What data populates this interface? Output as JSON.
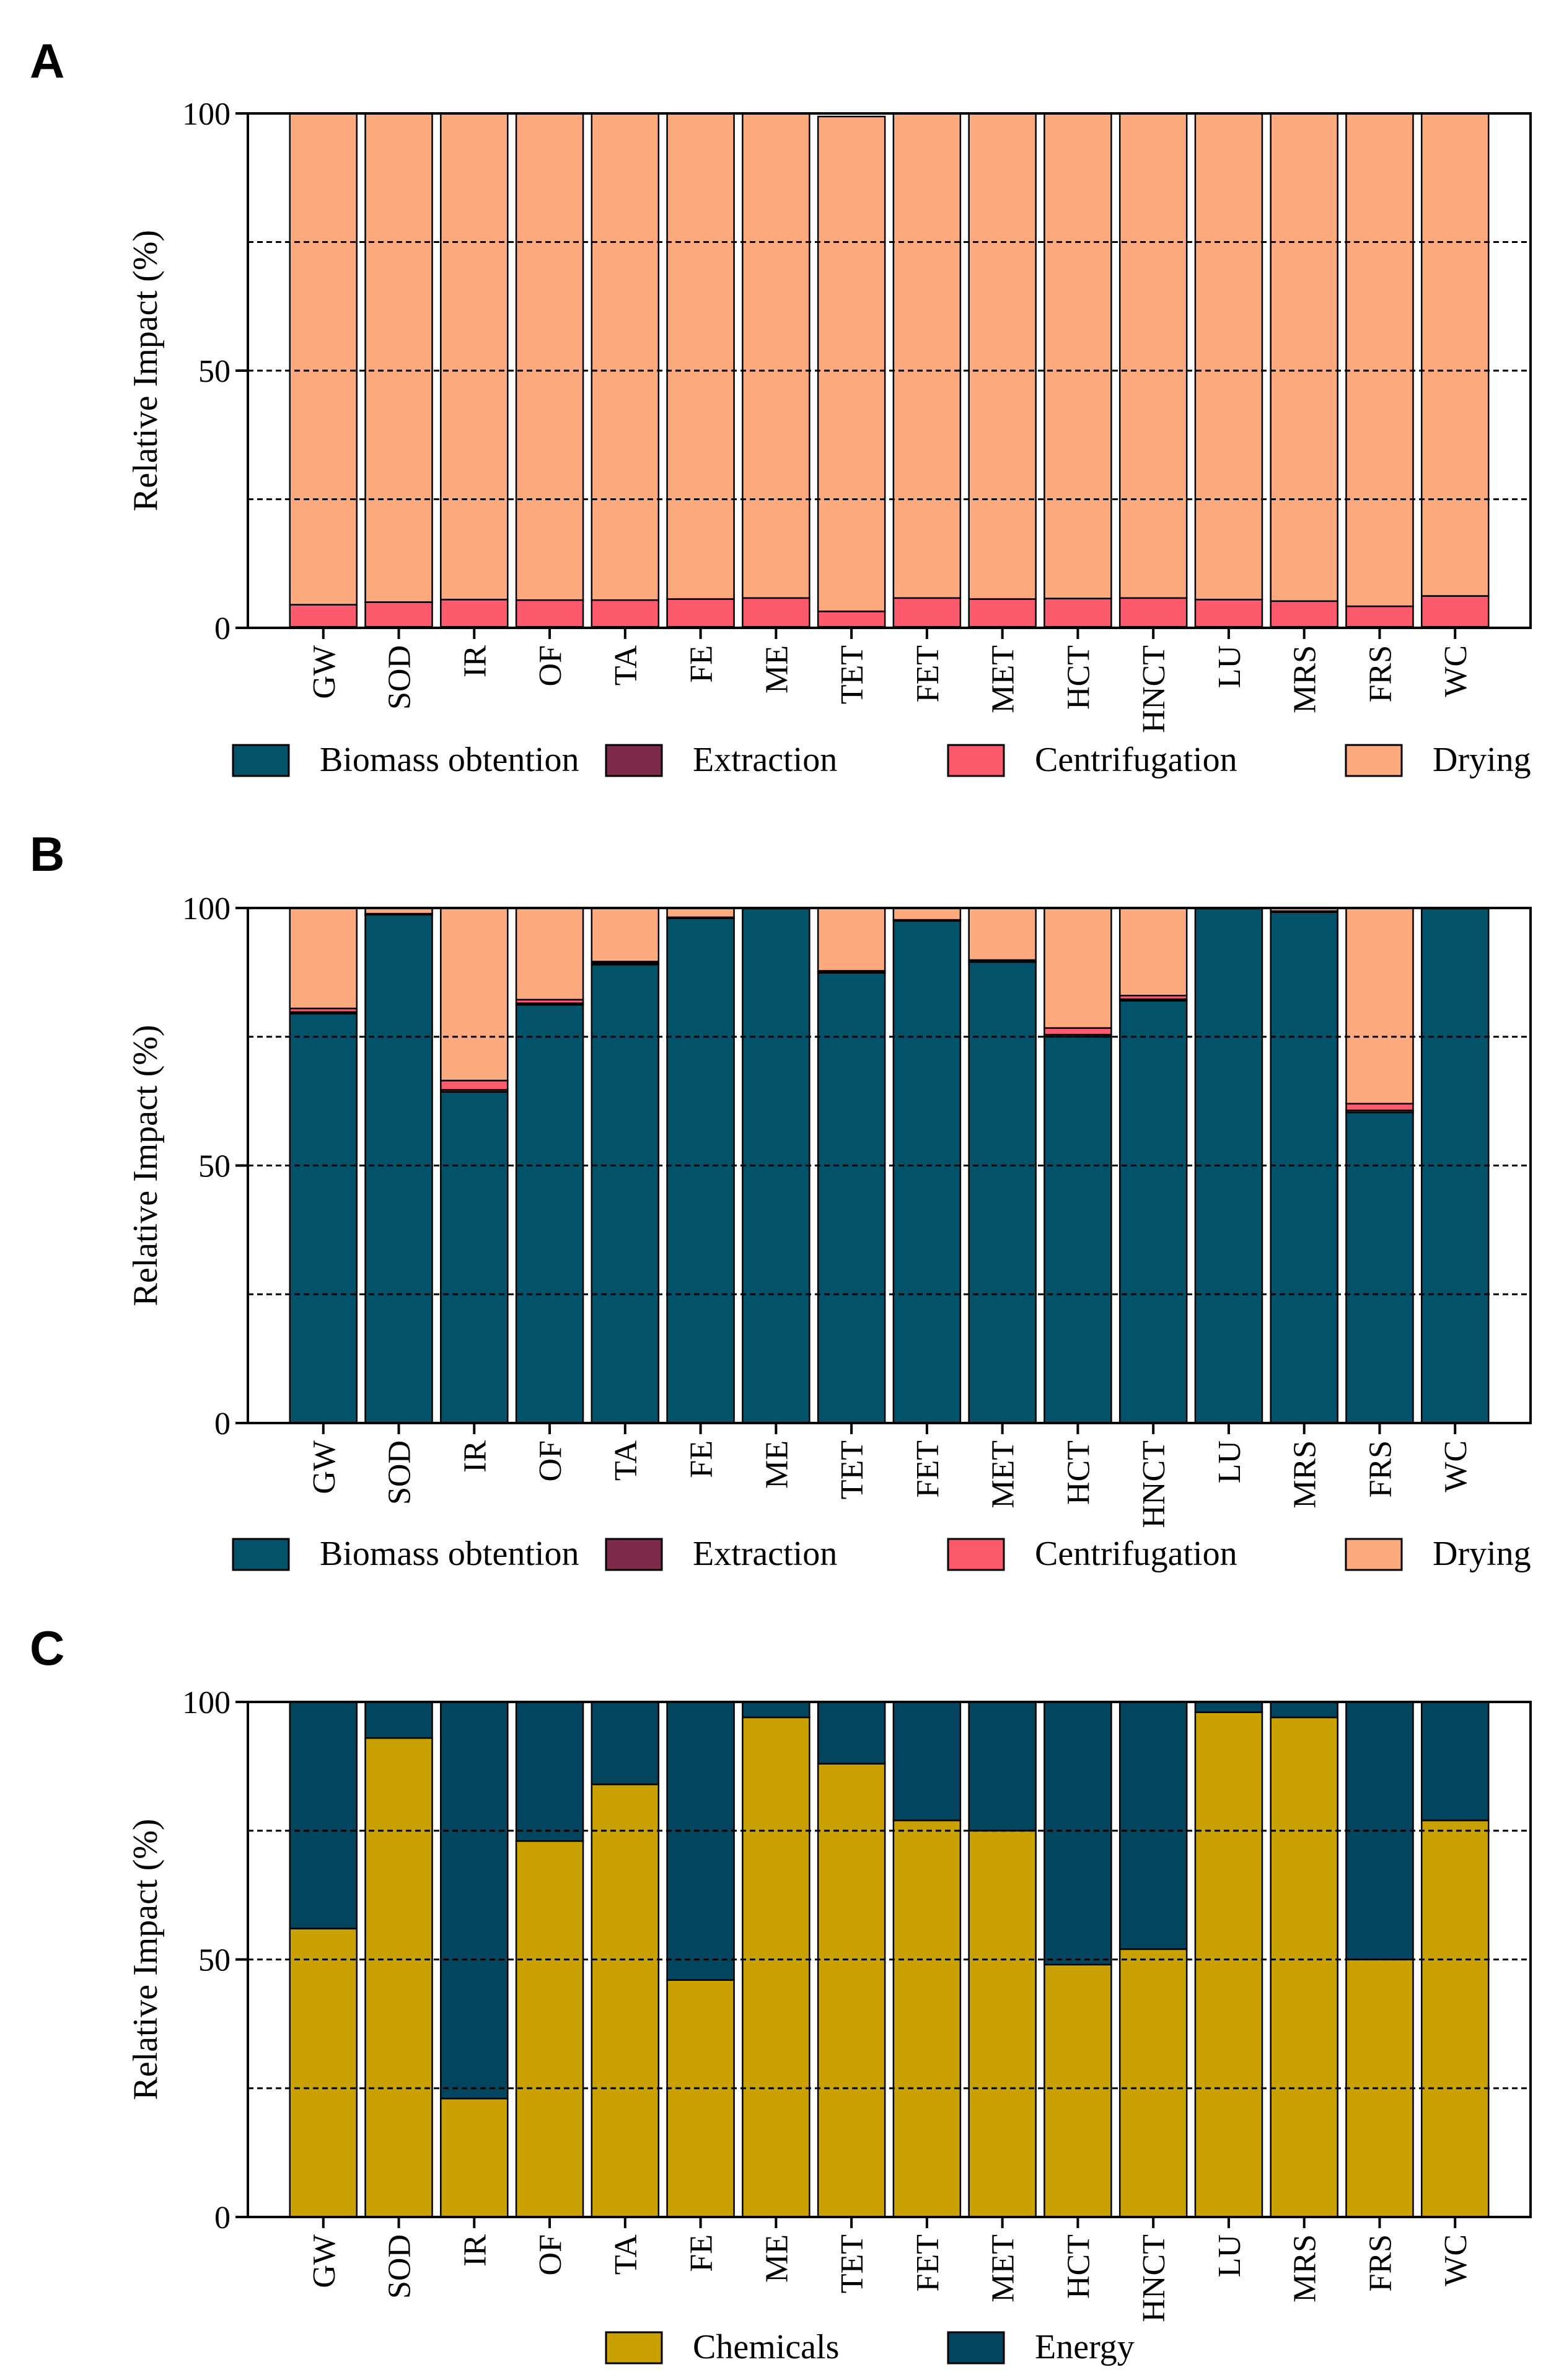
{
  "categories": [
    "GW",
    "SOD",
    "IR",
    "OF",
    "TA",
    "FE",
    "ME",
    "TET",
    "FET",
    "MET",
    "HCT",
    "HNCT",
    "LU",
    "MRS",
    "FRS",
    "WC"
  ],
  "colors": {
    "biomass": "#02536a",
    "extraction": "#7d2a4b",
    "centrifugation": "#fc5a6d",
    "drying": "#fdaa7e",
    "chemicals": "#c9a100",
    "energy": "#03455e"
  },
  "chart_data": [
    {
      "panel_label": "A",
      "type": "bar",
      "stacked": true,
      "ylabel": "Relative Impact (%)",
      "ylim": [
        0,
        100
      ],
      "yticks": [
        0,
        50,
        100
      ],
      "gridlines": [
        25,
        50,
        75
      ],
      "legend": [
        "Biomass obtention",
        "Extraction",
        "Centrifugation",
        "Drying"
      ],
      "series": [
        {
          "name": "Biomass obtention",
          "color_key": "biomass",
          "values": [
            0,
            0,
            0,
            0,
            0,
            0,
            0,
            0,
            0,
            0,
            0,
            0,
            0,
            0,
            0,
            0
          ]
        },
        {
          "name": "Extraction",
          "color_key": "extraction",
          "values": [
            0.2,
            0.2,
            0.2,
            0.2,
            0.2,
            0.2,
            0.2,
            0.2,
            0.2,
            0.2,
            0.2,
            0.2,
            0.2,
            0.2,
            0.2,
            0.2
          ]
        },
        {
          "name": "Centrifugation",
          "color_key": "centrifugation",
          "values": [
            4.3,
            4.8,
            5.3,
            5.2,
            5.2,
            5.4,
            5.6,
            3.0,
            5.6,
            5.4,
            5.5,
            5.6,
            5.3,
            5.0,
            4.0,
            6.0
          ]
        },
        {
          "name": "Drying",
          "color_key": "drying",
          "values": [
            95.5,
            95.0,
            94.5,
            94.6,
            94.6,
            94.4,
            94.2,
            96.2,
            94.2,
            94.4,
            94.3,
            94.2,
            94.5,
            94.8,
            95.8,
            93.8
          ]
        }
      ]
    },
    {
      "panel_label": "B",
      "type": "bar",
      "stacked": true,
      "ylabel": "Relative Impact (%)",
      "ylim": [
        0,
        100
      ],
      "yticks": [
        0,
        50,
        100
      ],
      "gridlines": [
        25,
        50,
        75
      ],
      "legend": [
        "Biomass obtention",
        "Extraction",
        "Centrifugation",
        "Drying"
      ],
      "series": [
        {
          "name": "Biomass obtention",
          "color_key": "biomass",
          "values": [
            79.5,
            98.7,
            64.3,
            81.2,
            89.0,
            98.0,
            99.9,
            87.4,
            97.5,
            89.5,
            75.0,
            82.0,
            99.9,
            99.2,
            60.3,
            99.9
          ]
        },
        {
          "name": "Extraction",
          "color_key": "extraction",
          "values": [
            0.3,
            0.1,
            0.4,
            0.3,
            0.3,
            0.1,
            0,
            0.2,
            0.1,
            0.2,
            0.4,
            0.3,
            0,
            0.1,
            0.4,
            0
          ]
        },
        {
          "name": "Centrifugation",
          "color_key": "centrifugation",
          "values": [
            0.7,
            0.1,
            1.8,
            0.7,
            0.3,
            0.1,
            0,
            0.2,
            0.1,
            0.2,
            1.3,
            0.7,
            0,
            0.1,
            1.3,
            0
          ]
        },
        {
          "name": "Drying",
          "color_key": "drying",
          "values": [
            19.5,
            1.1,
            33.5,
            17.8,
            10.4,
            1.8,
            0.1,
            12.2,
            2.3,
            10.1,
            23.3,
            17.0,
            0.1,
            0.6,
            38.0,
            0.1
          ]
        }
      ]
    },
    {
      "panel_label": "C",
      "type": "bar",
      "stacked": true,
      "ylabel": "Relative Impact (%)",
      "ylim": [
        0,
        100
      ],
      "yticks": [
        0,
        50,
        100
      ],
      "gridlines": [
        25,
        50,
        75
      ],
      "legend": [
        "Chemicals",
        "Energy"
      ],
      "series": [
        {
          "name": "Chemicals",
          "color_key": "chemicals",
          "values": [
            56,
            93,
            23,
            73,
            84,
            46,
            97,
            88,
            77,
            75,
            49,
            52,
            98,
            97,
            50,
            77
          ]
        },
        {
          "name": "Energy",
          "color_key": "energy",
          "values": [
            44,
            7,
            77,
            27,
            16,
            54,
            3,
            12,
            23,
            25,
            51,
            48,
            2,
            3,
            50,
            23
          ]
        }
      ]
    }
  ]
}
